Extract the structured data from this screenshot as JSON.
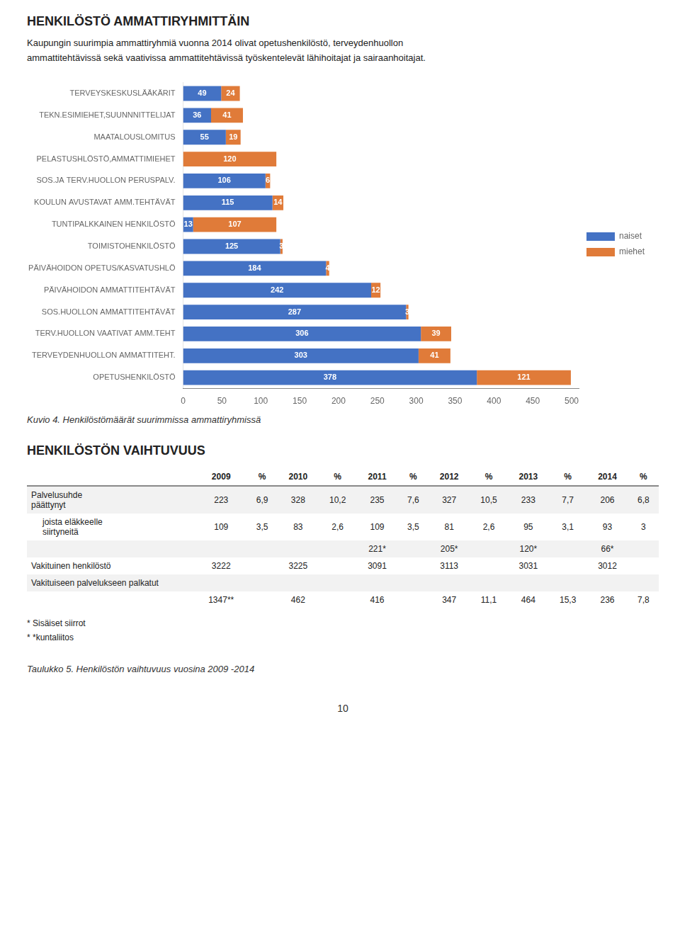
{
  "chart_data": [
    {
      "type": "bar",
      "title": "HENKILÖSTÖ AMMATTIRYHMITTÄIN",
      "subtitle": "Kaupungin suurimpia ammattiryhmiä vuonna 2014 olivat opetushenkilöstö, terveydenhuollon\nammattitehtävissä sekä vaativissa ammattitehtävissä työskentelevät lähihoitajat ja sairaanhoitajat.",
      "categories": [
        "TERVEYSKESKUSLÄÄKÄRIT",
        "TEKN.ESIMIEHET,SUUNNNITTELIJAT",
        "MAATALOUSLOMITUS",
        "PELASTUSHLÖSTÖ,AMMATTIMIEHET",
        "SOS.JA TERV.HUOLLON PERUSPALV.",
        "KOULUN AVUSTAVAT AMM.TEHTÄVÄT",
        "TUNTIPALKKAINEN HENKILÖSTÖ",
        "TOIMISTOHENKILÖSTÖ",
        "PÄIVÄHOIDON OPETUS/KASVATUSHLÖ",
        "PÄIVÄHOIDON AMMATTITEHTÄVÄT",
        "SOS.HUOLLON AMMATTITEHTÄVÄT",
        "TERV.HUOLLON VAATIVAT AMM.TEHT",
        "TERVEYDENHUOLLON AMMATTITEHT.",
        "OPETUSHENKILÖSTÖ"
      ],
      "series": [
        {
          "name": "naiset",
          "color": "#4472C4",
          "values": [
            49,
            36,
            55,
            0,
            106,
            115,
            13,
            125,
            184,
            242,
            287,
            306,
            303,
            378
          ]
        },
        {
          "name": "miehet",
          "color": "#E07B39",
          "values": [
            24,
            41,
            19,
            120,
            6,
            14,
            107,
            3,
            4,
            12,
            3,
            39,
            41,
            121
          ]
        }
      ],
      "orientation": "horizontal",
      "stacked": true,
      "data_labels": true,
      "xlim": [
        0,
        510
      ],
      "xticks": [
        0,
        50,
        100,
        150,
        200,
        250,
        300,
        350,
        400,
        450,
        500
      ],
      "grid": false,
      "legend": "right",
      "annotations": [
        "Kuvio 4. Henkilöstömäärät suurimmissa ammattiryhmissä"
      ]
    },
    {
      "type": "table",
      "title": "HENKILÖSTÖN VAIHTUVUUS",
      "columns": [
        null,
        "2009",
        "%",
        "2010",
        "%",
        "2011",
        "%",
        "2012",
        "%",
        "2013",
        "%",
        "2014",
        "%"
      ],
      "rows": [
        {
          "label": "Palvelusuhde\npäättynyt",
          "cells": [
            "223",
            "6,9",
            "328",
            "10,2",
            "235",
            "7,6",
            "327",
            "10,5",
            "233",
            "7,7",
            "206",
            "6,8"
          ]
        },
        {
          "label": "joista eläkkeelle\nsiirtyneitä",
          "cells": [
            "109",
            "3,5",
            "83",
            "2,6",
            "109",
            "3,5",
            "81",
            "2,6",
            "95",
            "3,1",
            "93",
            "3"
          ]
        },
        {
          "label": null,
          "cells": [
            null,
            null,
            null,
            null,
            "221*",
            null,
            "205*",
            null,
            "120*",
            null,
            "66*",
            null
          ]
        },
        {
          "label": "Vakituinen henkilöstö",
          "cells": [
            "3222",
            null,
            "3225",
            null,
            "3091",
            null,
            "3113",
            null,
            "3031",
            null,
            "3012",
            null
          ]
        },
        {
          "label": "Vakituiseen palvelukseen palkatut",
          "cells": [
            null,
            null,
            null,
            null,
            null,
            null,
            null,
            null,
            null,
            null,
            null,
            null
          ]
        },
        {
          "label": null,
          "cells": [
            "1347**",
            null,
            "462",
            null,
            "416",
            null,
            "347",
            "11,1",
            "464",
            "15,3",
            "236",
            "7,8"
          ]
        }
      ],
      "annotations": [
        "* Sisäiset siirrot",
        "* *kuntaliitos",
        "Taulukko 5. Henkilöstön vaihtuvuus vuosina 2009 -2014"
      ]
    }
  ],
  "page_number": "10"
}
